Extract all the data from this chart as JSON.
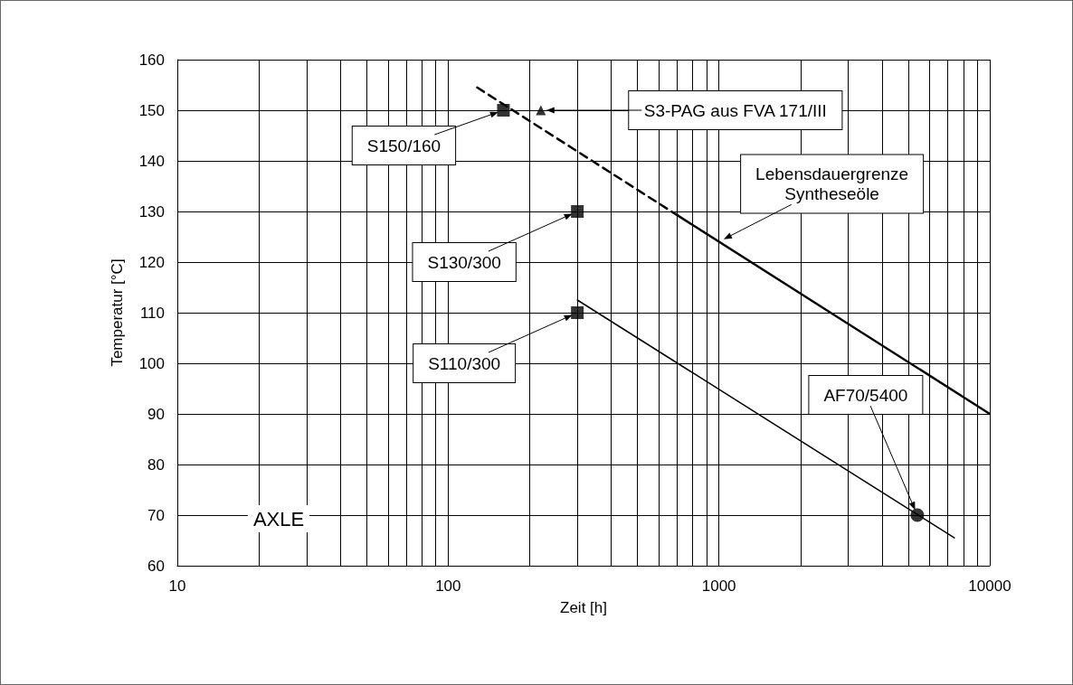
{
  "chart_data": {
    "type": "line",
    "xlabel": "Zeit [h]",
    "ylabel": "Temperatur [°C]",
    "log": "x",
    "grid": true,
    "xlim": [
      10,
      10000
    ],
    "xticks": [
      10,
      {
        "value": 20,
        "label": null
      },
      {
        "value": 30,
        "label": null
      },
      {
        "value": 40,
        "label": null
      },
      {
        "value": 50,
        "label": null
      },
      {
        "value": 60,
        "label": null
      },
      {
        "value": 70,
        "label": null
      },
      {
        "value": 80,
        "label": null
      },
      {
        "value": 90,
        "label": null
      },
      100,
      {
        "value": 200,
        "label": null
      },
      {
        "value": 300,
        "label": null
      },
      {
        "value": 400,
        "label": null
      },
      {
        "value": 500,
        "label": null
      },
      {
        "value": 600,
        "label": null
      },
      {
        "value": 700,
        "label": null
      },
      {
        "value": 800,
        "label": null
      },
      {
        "value": 900,
        "label": null
      },
      1000,
      {
        "value": 2000,
        "label": null
      },
      {
        "value": 3000,
        "label": null
      },
      {
        "value": 4000,
        "label": null
      },
      {
        "value": 5000,
        "label": null
      },
      {
        "value": 6000,
        "label": null
      },
      {
        "value": 7000,
        "label": null
      },
      {
        "value": 8000,
        "label": null
      },
      {
        "value": 9000,
        "label": null
      },
      10000
    ],
    "ylim": [
      60,
      160
    ],
    "yticks": [
      60,
      70,
      80,
      90,
      100,
      110,
      120,
      130,
      140,
      150,
      160
    ],
    "series": [
      {
        "color": "#000000",
        "line_style": "dashed",
        "marker": "none",
        "x": [
          128,
          700
        ],
        "values": [
          154.5,
          129.3
        ]
      },
      {
        "color": "#000000",
        "line_style": "solid",
        "marker": "none",
        "x": [
          700,
          10000
        ],
        "values": [
          129.3,
          90
        ]
      },
      {
        "color": "#000000",
        "line_style": "solid",
        "marker": "none",
        "x": [
          300,
          7400
        ],
        "values": [
          112.5,
          65.5
        ]
      },
      {
        "type": "scatter",
        "color": "#000000",
        "marker": "square",
        "x": [
          160,
          300,
          300
        ],
        "values": [
          150,
          130,
          110
        ]
      },
      {
        "type": "scatter",
        "color": "#000000",
        "marker": "triangle",
        "x": [
          220
        ],
        "values": [
          150
        ]
      },
      {
        "type": "scatter",
        "color": "#000000",
        "marker": "circle",
        "x": [
          5400
        ],
        "values": [
          70
        ]
      }
    ],
    "annotations": [
      "S150/160",
      "S3-PAG aus FVA 171/III",
      "Lebensdauergrenze\nSyntheseöle",
      "S130/300",
      "S110/300",
      "AF70/5400",
      "AXLE"
    ]
  }
}
